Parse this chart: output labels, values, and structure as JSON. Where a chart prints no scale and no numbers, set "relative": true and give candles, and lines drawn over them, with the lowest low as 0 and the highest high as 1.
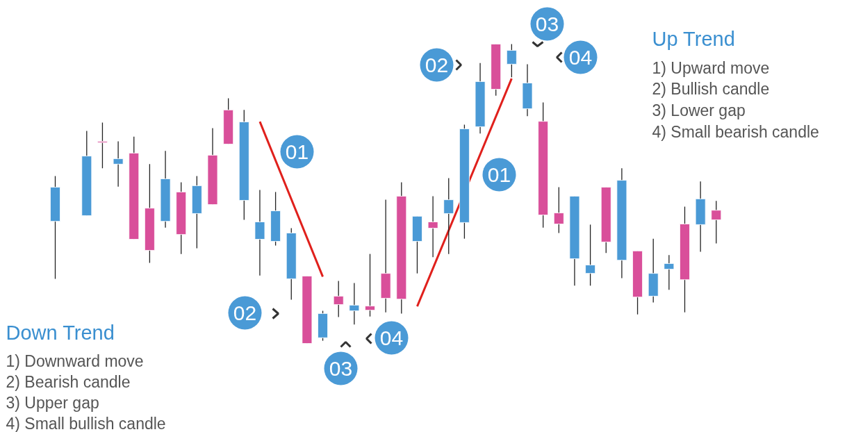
{
  "chart_data": {
    "type": "candlestick",
    "relative": true,
    "categories": [
      null,
      null,
      null,
      null,
      null,
      null,
      null,
      null,
      null,
      null,
      null,
      null,
      null,
      null,
      null,
      null,
      null,
      null,
      null,
      null,
      null,
      null,
      null,
      null,
      null,
      null,
      null,
      null,
      null,
      null,
      null,
      null,
      null,
      null,
      null,
      null,
      null,
      null,
      null,
      null,
      null,
      null,
      null
    ],
    "ohlc": [
      [
        0.408,
        0.559,
        0.216,
        0.522
      ],
      null,
      [
        0.427,
        0.71,
        0.427,
        0.626
      ],
      [
        0.675,
        0.738,
        0.585,
        0.671
      ],
      [
        0.599,
        0.675,
        0.524,
        0.617
      ],
      [
        0.636,
        0.691,
        0.348,
        0.348
      ],
      [
        0.452,
        0.599,
        0.269,
        0.311
      ],
      [
        0.408,
        0.643,
        0.387,
        0.55
      ],
      [
        0.506,
        0.538,
        0.299,
        0.364
      ],
      [
        0.434,
        0.559,
        0.318,
        0.527
      ],
      [
        0.629,
        0.719,
        0.464,
        0.464
      ],
      [
        0.78,
        0.819,
        0.666,
        0.666
      ],
      [
        0.478,
        0.78,
        0.413,
        0.74
      ],
      [
        0.348,
        0.513,
        0.227,
        0.406
      ],
      [
        0.341,
        0.506,
        0.327,
        0.443
      ],
      [
        0.216,
        0.385,
        0.146,
        0.369
      ],
      [
        0.225,
        0.225,
        0,
        0
      ],
      [
        0.019,
        0.109,
        0.009,
        0.1
      ],
      [
        0.158,
        0.209,
        0.088,
        0.13
      ],
      [
        0.109,
        0.202,
        0.063,
        0.128
      ],
      [
        0.125,
        0.299,
        0.09,
        0.111
      ],
      [
        0.234,
        0.48,
        0.104,
        0.151
      ],
      [
        0.492,
        0.538,
        0.1,
        0.148
      ],
      [
        0.341,
        0.425,
        0.234,
        0.425
      ],
      [
        0.406,
        0.492,
        0.288,
        0.385
      ],
      [
        0.434,
        0.552,
        0.299,
        0.48
      ],
      [
        0.404,
        0.731,
        0.35,
        0.717
      ],
      [
        0.724,
        0.937,
        0.701,
        0.875
      ],
      [
        1,
        1,
        0.828,
        0.849
      ],
      [
        0.933,
        1,
        0.889,
        0.979
      ],
      [
        0.784,
        0.933,
        0.759,
        0.87
      ],
      [
        0.742,
        0.805,
        0.387,
        0.429
      ],
      [
        0.436,
        0.522,
        0.369,
        0.399
      ],
      [
        0.283,
        0.492,
        0.193,
        0.492
      ],
      [
        0.234,
        0.397,
        0.193,
        0.262
      ],
      [
        0.522,
        0.522,
        0.302,
        0.339
      ],
      [
        0.278,
        0.585,
        0.218,
        0.545
      ],
      [
        0.309,
        0.309,
        0.097,
        0.155
      ],
      [
        0.158,
        0.35,
        0.137,
        0.234
      ],
      [
        0.248,
        0.295,
        0.179,
        0.267
      ],
      [
        0.399,
        0.457,
        0.104,
        0.213
      ],
      [
        0.397,
        0.541,
        0.306,
        0.483
      ],
      [
        0.445,
        0.476,
        0.334,
        0.413
      ]
    ],
    "colors": [
      "#4a9ad6",
      null,
      "#4a9ad6",
      "#d94f9a",
      "#4a9ad6",
      "#d94f9a",
      "#d94f9a",
      "#4a9ad6",
      "#d94f9a",
      "#4a9ad6",
      "#d94f9a",
      "#d94f9a",
      "#4a9ad6",
      "#4a9ad6",
      "#4a9ad6",
      "#4a9ad6",
      "#d94f9a",
      "#4a9ad6",
      "#d94f9a",
      "#4a9ad6",
      "#d94f9a",
      "#d94f9a",
      "#d94f9a",
      "#4a9ad6",
      "#d94f9a",
      "#4a9ad6",
      "#4a9ad6",
      "#4a9ad6",
      "#d94f9a",
      "#4a9ad6",
      "#4a9ad6",
      "#d94f9a",
      "#d94f9a",
      "#4a9ad6",
      "#4a9ad6",
      "#d94f9a",
      "#4a9ad6",
      "#d94f9a",
      "#4a9ad6",
      "#4a9ad6",
      "#d94f9a",
      "#4a9ad6",
      "#d94f9a"
    ],
    "series": [
      {
        "type": "line",
        "color": "#e0201c",
        "values": [
          null,
          null,
          null,
          null,
          null,
          null,
          null,
          null,
          null,
          null,
          null,
          null,
          null,
          0.741,
          null,
          null,
          null,
          0.223,
          null,
          null,
          null,
          null,
          null,
          null,
          null,
          null,
          null,
          null,
          null,
          null,
          null,
          null,
          null,
          null,
          null,
          null,
          null,
          null,
          null,
          null,
          null,
          null,
          null
        ]
      },
      {
        "type": "line",
        "color": "#e0201c",
        "values": [
          null,
          null,
          null,
          null,
          null,
          null,
          null,
          null,
          null,
          null,
          null,
          null,
          null,
          null,
          null,
          null,
          null,
          null,
          null,
          null,
          null,
          null,
          null,
          0.124,
          null,
          null,
          null,
          null,
          null,
          0.885,
          null,
          null,
          null,
          null,
          null,
          null,
          null,
          null,
          null,
          null,
          null,
          null,
          null
        ]
      }
    ],
    "annotations": [
      "Down Trend",
      "1)  Downward move",
      "2) Bearish candle",
      "3) Upper gap",
      "4) Small bullish candle",
      "Up Trend",
      "1)  Upward move",
      "2) Bullish candle",
      "3) Lower gap",
      "4) Small bearish candle",
      "01",
      "02",
      "03",
      "04",
      "01",
      "02",
      "03",
      "04"
    ]
  }
}
